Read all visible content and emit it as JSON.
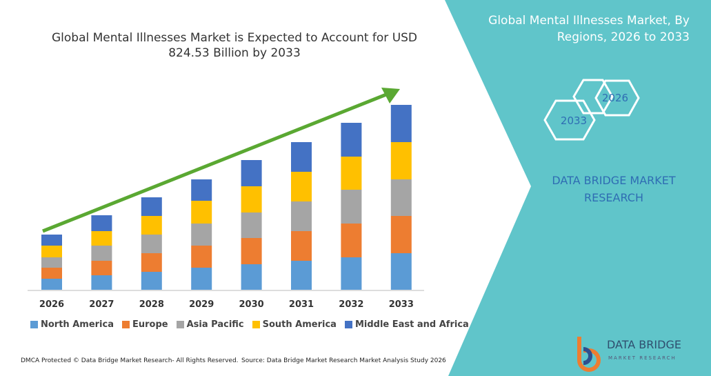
{
  "chart_data": {
    "type": "bar",
    "stacked": true,
    "title": "Global Mental Illnesses Market is Expected to Account for USD 824.53 Billion by 2033",
    "categories": [
      "2026",
      "2027",
      "2028",
      "2029",
      "2030",
      "2031",
      "2032",
      "2033"
    ],
    "series": [
      {
        "name": "North America",
        "color": "#5b9bd5",
        "values": [
          16,
          21,
          26,
          32,
          37,
          42,
          47,
          53
        ]
      },
      {
        "name": "Europe",
        "color": "#ed7d31",
        "values": [
          16,
          21,
          27,
          32,
          38,
          43,
          49,
          54
        ]
      },
      {
        "name": "Asia Pacific",
        "color": "#a5a5a5",
        "values": [
          15,
          22,
          27,
          32,
          37,
          43,
          49,
          53
        ]
      },
      {
        "name": "South America",
        "color": "#ffc000",
        "values": [
          17,
          21,
          27,
          33,
          38,
          43,
          48,
          54
        ]
      },
      {
        "name": "Middle East and Africa",
        "color": "#4472c4",
        "values": [
          16,
          23,
          27,
          31,
          38,
          43,
          49,
          54
        ]
      }
    ],
    "ylim": [
      0,
      280
    ]
  },
  "panel": {
    "title": "Global Mental Illnesses Market, By Regions, 2026 to 2033",
    "hexagons": [
      "2026",
      "2033"
    ],
    "company": "DATA BRIDGE MARKET RESEARCH"
  },
  "footer": {
    "dmca": "DMCA Protected © Data Bridge Market Research- All Rights Reserved.",
    "source": "Source: Data Bridge Market Research Market Analysis Study 2026"
  },
  "logo": {
    "name": "DATA BRIDGE",
    "tagline": "MARKET RESEARCH"
  }
}
